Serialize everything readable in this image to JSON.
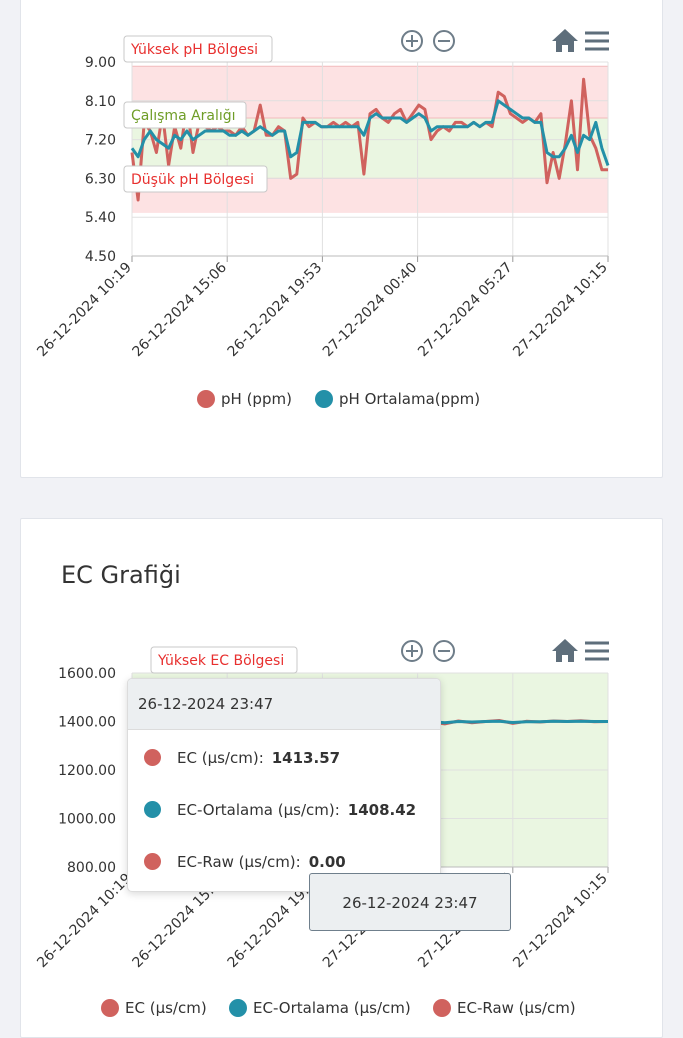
{
  "colors": {
    "ph": "#d0625e",
    "avg": "#2390a8",
    "raw": "#d0625e",
    "high_zone": "#fde2e3",
    "work_zone": "#eaf6e1",
    "grid": "#e0e0e0"
  },
  "toolbar": {
    "zoom_in_icon": "zoom-in",
    "zoom_out_icon": "zoom-out",
    "home_icon": "home",
    "menu_icon": "hamburger-menu"
  },
  "ph_chart": {
    "chart_data": {
      "type": "line",
      "title": "",
      "ylim": [
        4.5,
        9.0
      ],
      "yticks": [
        "9.00",
        "8.10",
        "7.20",
        "6.30",
        "5.40",
        "4.50"
      ],
      "xticks": [
        "26-12-2024 10:19",
        "26-12-2024 15:06",
        "26-12-2024 19:53",
        "27-12-2024 00:40",
        "27-12-2024 05:27",
        "27-12-2024 10:15"
      ],
      "zones": [
        {
          "label": "Yüksek pH Bölgesi",
          "from": 7.7,
          "to": 8.9,
          "color": "#fde2e3",
          "label_color": "#e8302f"
        },
        {
          "label": "Çalışma Aralığı",
          "from": 6.3,
          "to": 7.7,
          "color": "#eaf6e1",
          "label_color": "#6f9d27"
        },
        {
          "label": "Düşük pH Bölgesi",
          "from": 5.5,
          "to": 6.3,
          "color": "#fde2e3",
          "label_color": "#e8302f"
        }
      ],
      "series": [
        {
          "name": "pH (ppm)",
          "color": "#d0625e",
          "values": [
            6.9,
            5.8,
            7.6,
            7.4,
            6.9,
            7.8,
            6.6,
            7.5,
            7.0,
            8.0,
            6.9,
            7.6,
            7.5,
            7.4,
            7.5,
            7.4,
            7.4,
            7.3,
            7.5,
            7.3,
            7.4,
            8.0,
            7.3,
            7.3,
            7.5,
            7.4,
            6.3,
            6.4,
            7.7,
            7.5,
            7.6,
            7.5,
            7.5,
            7.6,
            7.5,
            7.6,
            7.5,
            7.6,
            6.4,
            7.8,
            7.9,
            7.7,
            7.6,
            7.8,
            7.9,
            7.6,
            7.8,
            8.0,
            7.9,
            7.2,
            7.4,
            7.5,
            7.4,
            7.6,
            7.6,
            7.5,
            7.6,
            7.5,
            7.6,
            7.5,
            8.3,
            8.2,
            7.8,
            7.7,
            7.6,
            7.7,
            7.6,
            7.8,
            6.2,
            6.9,
            6.3,
            7.1,
            8.1,
            6.5,
            8.6,
            7.3,
            7.0,
            6.5,
            6.5
          ]
        },
        {
          "name": "pH Ortalama(ppm)",
          "color": "#2390a8",
          "values": [
            7.0,
            6.8,
            7.2,
            7.4,
            7.2,
            7.1,
            7.0,
            7.3,
            7.2,
            7.4,
            7.2,
            7.3,
            7.4,
            7.4,
            7.4,
            7.4,
            7.3,
            7.3,
            7.4,
            7.3,
            7.4,
            7.5,
            7.4,
            7.3,
            7.4,
            7.4,
            6.8,
            6.9,
            7.6,
            7.6,
            7.6,
            7.5,
            7.5,
            7.5,
            7.5,
            7.5,
            7.5,
            7.5,
            7.3,
            7.7,
            7.8,
            7.7,
            7.7,
            7.7,
            7.7,
            7.6,
            7.7,
            7.8,
            7.7,
            7.4,
            7.5,
            7.5,
            7.5,
            7.5,
            7.5,
            7.5,
            7.6,
            7.5,
            7.6,
            7.6,
            8.1,
            8.0,
            7.9,
            7.8,
            7.7,
            7.7,
            7.6,
            7.6,
            6.9,
            6.8,
            6.8,
            7.0,
            7.3,
            6.9,
            7.3,
            7.2,
            7.6,
            7.0,
            6.6
          ]
        }
      ],
      "legend": "bottom"
    }
  },
  "ec_section": {
    "title": "EC Grafiği"
  },
  "ec_chart": {
    "chart_data": {
      "type": "line",
      "ylim": [
        800,
        1600
      ],
      "yticks": [
        "1600.00",
        "1400.00",
        "1200.00",
        "1000.00",
        "800.00"
      ],
      "xticks": [
        "26-12-2024 10:19",
        "26-12-2024 15:06",
        "26-12-2024 19:53",
        "27-12-2024 00:40",
        "27-12-2024 05:27",
        "27-12-2024 10:15"
      ],
      "zones": [
        {
          "label": "Yüksek EC Bölgesi",
          "from": 780,
          "to": 1600,
          "color": "#eaf6e1",
          "label_color": "#e8302f"
        }
      ],
      "series": [
        {
          "name": "EC (µs/cm)",
          "color": "#d0625e",
          "values": [
            1401,
            1402,
            1399,
            1400,
            1402,
            1403,
            1401,
            1400,
            1399,
            1402,
            1404,
            1401,
            1400,
            1398,
            1401,
            1403,
            1402,
            1400,
            1399,
            1401,
            1410,
            1405,
            1398,
            1390,
            1402,
            1395,
            1400,
            1404,
            1392,
            1401,
            1398,
            1402,
            1400,
            1403,
            1399,
            1400
          ]
        },
        {
          "name": "EC-Ortalama (µs/cm)",
          "color": "#2390a8",
          "values": [
            1400,
            1401,
            1400,
            1400,
            1401,
            1402,
            1401,
            1400,
            1400,
            1401,
            1402,
            1401,
            1400,
            1399,
            1400,
            1402,
            1401,
            1400,
            1400,
            1400,
            1405,
            1404,
            1400,
            1395,
            1400,
            1398,
            1400,
            1401,
            1396,
            1399,
            1399,
            1401,
            1400,
            1401,
            1400,
            1400
          ]
        },
        {
          "name": "EC-Raw (µs/cm)",
          "color": "#d0625e",
          "values": []
        }
      ],
      "legend": "bottom"
    },
    "tooltip": {
      "header": "26-12-2024 23:47",
      "rows": [
        {
          "label": "EC (µs/cm):",
          "value": "1413.57",
          "color": "#d0625e"
        },
        {
          "label": "EC-Ortalama (µs/cm):",
          "value": "1408.42",
          "color": "#2390a8"
        },
        {
          "label": "EC-Raw (µs/cm):",
          "value": "0.00",
          "color": "#d0625e"
        }
      ]
    },
    "x_crosshair_label": "26-12-2024 23:47"
  }
}
